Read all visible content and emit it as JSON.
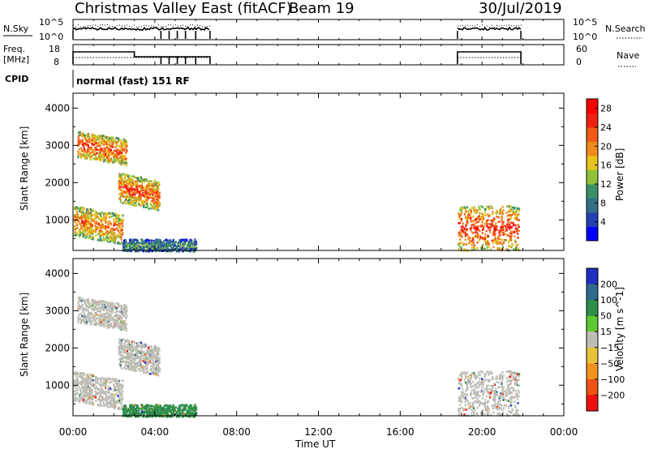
{
  "header": {
    "title": "Christmas Valley East (fitACF)",
    "beam": "Beam 19",
    "date": "30/Jul/2019"
  },
  "panels": {
    "nsky": {
      "left_label": "N.Sky",
      "tick_top": "10^5",
      "tick_bottom": "10^0",
      "right_top": "10^5",
      "right_bottom": "10^0",
      "right_label": "N.Search"
    },
    "freq": {
      "left_label_1": "Freq.",
      "left_label_2": "[MHz]",
      "tick_top": "18",
      "tick_bottom": "8",
      "right_top": "60",
      "right_bottom": "0",
      "right_label": "Nave"
    },
    "cpid": {
      "label": "CPID",
      "text": "normal (fast) 151 RF"
    }
  },
  "axes": {
    "ylabel": "Slant Range [km]",
    "xlabel": "Time UT",
    "xticks": [
      "00:00",
      "04:00",
      "08:00",
      "12:00",
      "16:00",
      "20:00",
      "00:00"
    ],
    "yticks": [
      "1000",
      "2000",
      "3000",
      "4000"
    ]
  },
  "colorbars": {
    "power": {
      "label": "Power [dB]",
      "ticks": [
        "4",
        "8",
        "12",
        "16",
        "20",
        "24",
        "28"
      ],
      "colors": [
        "#0000ff",
        "#2540b0",
        "#336e86",
        "#3a8f6a",
        "#8fc23a",
        "#e6c41d",
        "#f08a1d",
        "#f05a14",
        "#f22010",
        "#ff0000"
      ]
    },
    "velocity": {
      "label": "Velocity [m s^-1]",
      "ticks": [
        "200",
        "100",
        "50",
        "15",
        "−15",
        "−50",
        "−100",
        "−200"
      ],
      "colors": [
        "#2030c0",
        "#2f6a8c",
        "#2e8e4a",
        "#5ec832",
        "#bdbdb5",
        "#e8c23a",
        "#f0931e",
        "#f05214",
        "#ee1010"
      ]
    }
  },
  "chart_data": {
    "type": "heatmap",
    "x_unit": "hours UT",
    "y_unit": "km",
    "xlim": [
      0,
      24
    ],
    "ylim": [
      180,
      4400
    ],
    "x_tick_values": [
      0,
      4,
      8,
      12,
      16,
      20,
      24
    ],
    "y_tick_values": [
      1000,
      2000,
      3000,
      4000
    ],
    "power_range_dB": [
      0,
      30
    ],
    "velocity_range": [
      -250,
      250
    ],
    "operating_periods": [
      [
        0.0,
        6.7
      ],
      [
        18.8,
        21.9
      ]
    ],
    "echo_regions": [
      {
        "t": [
          0.2,
          2.6
        ],
        "r": [
          2700,
          3400
        ],
        "power": 24,
        "velocity": 0
      },
      {
        "t": [
          2.2,
          4.2
        ],
        "r": [
          1500,
          2300
        ],
        "power": 24,
        "velocity": 0
      },
      {
        "t": [
          0.0,
          2.4
        ],
        "r": [
          600,
          1400
        ],
        "power": 22,
        "velocity": 0
      },
      {
        "t": [
          2.4,
          6.0
        ],
        "r": [
          180,
          500
        ],
        "power": 10,
        "velocity": 60
      },
      {
        "t": [
          18.8,
          21.8
        ],
        "r": [
          200,
          1400
        ],
        "power": 26,
        "velocity": 0
      }
    ],
    "nsky_level": "10^4",
    "freq_MHz": [
      12,
      10
    ]
  }
}
